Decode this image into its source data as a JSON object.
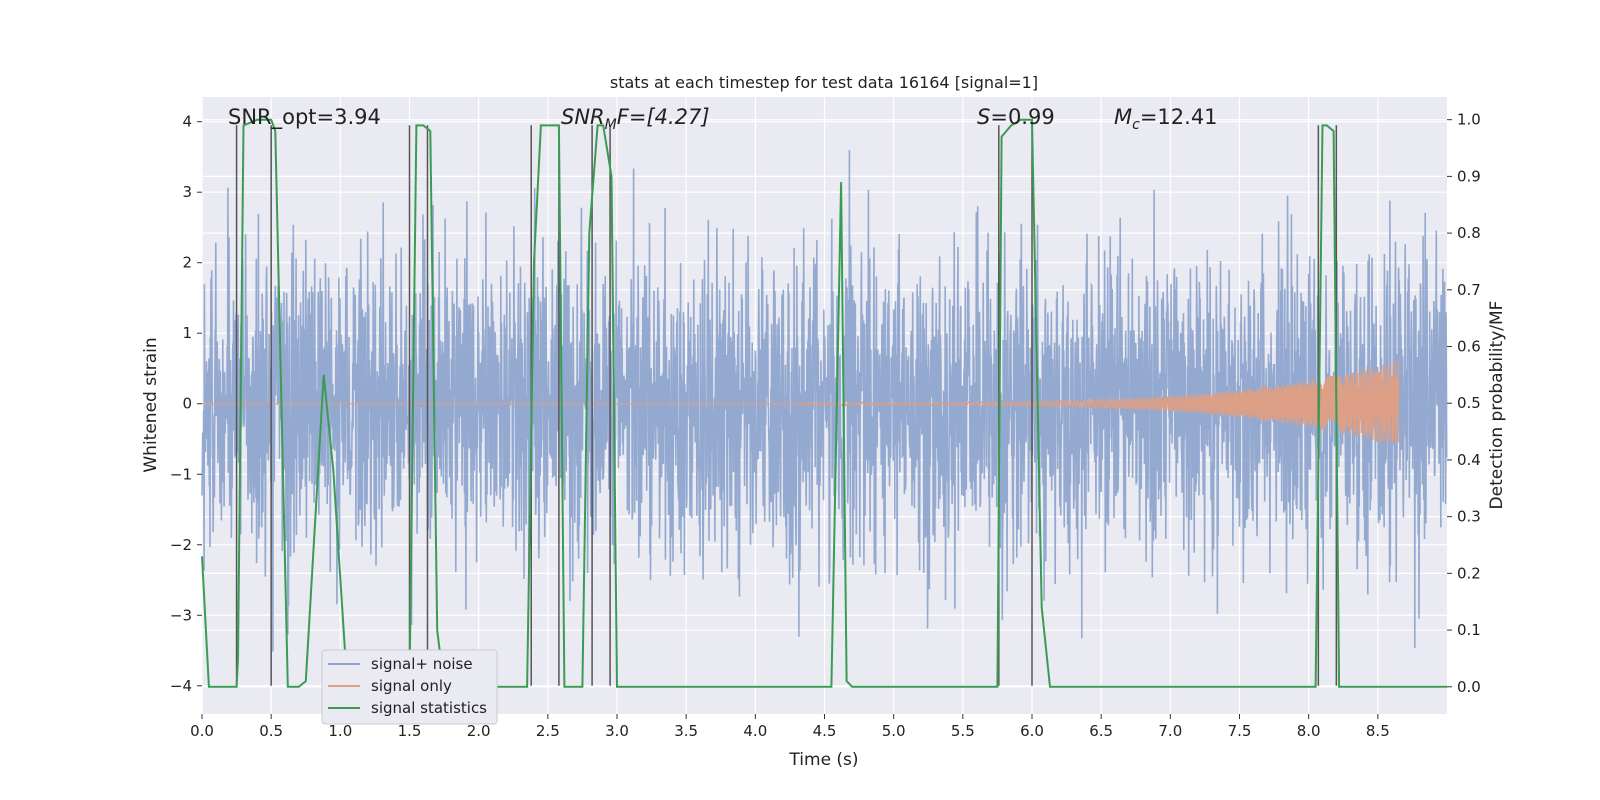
{
  "chart_data": {
    "type": "line",
    "title": "stats at each timestep for test data 16164 [signal=1]",
    "xlabel": "Time (s)",
    "ylabel_left": "Whitened strain",
    "ylabel_right": "Detection probability/MF",
    "xlim": [
      0,
      9.0
    ],
    "ylim_left": [
      -4.4,
      4.35
    ],
    "ylim_right": [
      -0.048,
      1.04
    ],
    "x_ticks": [
      0.0,
      0.5,
      1.0,
      1.5,
      2.0,
      2.5,
      3.0,
      3.5,
      4.0,
      4.5,
      5.0,
      5.5,
      6.0,
      6.5,
      7.0,
      7.5,
      8.0,
      8.5
    ],
    "x_tick_labels": [
      "0.0",
      "0.5",
      "1.0",
      "1.5",
      "2.0",
      "2.5",
      "3.0",
      "3.5",
      "4.0",
      "4.5",
      "5.0",
      "5.5",
      "6.0",
      "6.5",
      "7.0",
      "7.5",
      "8.0",
      "8.5"
    ],
    "y_left_ticks": [
      4,
      3,
      2,
      1,
      0,
      -1,
      -2,
      -3,
      -4
    ],
    "y_left_tick_labels": [
      "4",
      "3",
      "2",
      "1",
      "0",
      "−1",
      "−2",
      "−3",
      "−4"
    ],
    "y_right_ticks": [
      1.0,
      0.9,
      0.8,
      0.7,
      0.6,
      0.5,
      0.4,
      0.3,
      0.2,
      0.1,
      0.0
    ],
    "y_right_tick_labels": [
      "1.0",
      "0.9",
      "0.8",
      "0.7",
      "0.6",
      "0.5",
      "0.4",
      "0.3",
      "0.2",
      "0.1",
      "0.0"
    ],
    "grid": true,
    "legend_position": "lower-left",
    "annotations": {
      "snr_opt": "SNR_opt=3.94",
      "snr_mf_prefix": "SNR",
      "snr_mf_sub": "M",
      "snr_mf_suffix": "F=[4.27]",
      "s_label": "S",
      "s_value": "=0.99",
      "mc_label": "M",
      "mc_sub": "c",
      "mc_value": "=12.41"
    },
    "series": [
      {
        "name": "signal+ noise",
        "color": "#8fa5cd",
        "axis": "left",
        "kind": "noise",
        "sample_rate": 400,
        "sigma": 1.05,
        "seed": 16164
      },
      {
        "name": "signal only",
        "color": "#dd9f85",
        "axis": "left",
        "kind": "chirp",
        "start": 4.3,
        "end": 8.65,
        "peak_amplitude": 0.6
      },
      {
        "name": "signal statistics",
        "color": "#3a9c54",
        "axis": "right",
        "kind": "line",
        "x": [
          0.0,
          0.05,
          0.25,
          0.26,
          0.3,
          0.4,
          0.5,
          0.53,
          0.62,
          0.7,
          0.75,
          0.88,
          0.95,
          1.05,
          1.1,
          1.5,
          1.55,
          1.6,
          1.65,
          1.7,
          1.75,
          2.35,
          2.4,
          2.45,
          2.5,
          2.58,
          2.62,
          2.75,
          2.8,
          2.86,
          2.9,
          2.96,
          3.0,
          3.05,
          3.1,
          4.55,
          4.62,
          4.66,
          4.7,
          5.75,
          5.78,
          5.85,
          5.92,
          6.0,
          6.07,
          6.13,
          8.05,
          8.1,
          8.13,
          8.18,
          8.22,
          8.28,
          9.0
        ],
        "y": [
          0.23,
          0.0,
          0.0,
          0.05,
          0.99,
          1.0,
          1.0,
          0.98,
          0.0,
          0.0,
          0.01,
          0.55,
          0.38,
          0.0,
          0.0,
          0.0,
          0.99,
          0.99,
          0.98,
          0.1,
          0.0,
          0.0,
          0.75,
          0.99,
          0.99,
          0.99,
          0.0,
          0.0,
          0.8,
          0.99,
          0.99,
          0.9,
          0.0,
          0.0,
          0.0,
          0.0,
          0.89,
          0.01,
          0.0,
          0.0,
          0.97,
          0.99,
          1.0,
          1.0,
          0.14,
          0.0,
          0.0,
          0.99,
          0.99,
          0.98,
          0.0,
          0.0,
          0.0
        ]
      }
    ],
    "vertical_markers": [
      0.25,
      0.5,
      1.5,
      1.63,
      2.38,
      2.58,
      2.82,
      2.95,
      5.76,
      6.0,
      8.07,
      8.2
    ]
  }
}
